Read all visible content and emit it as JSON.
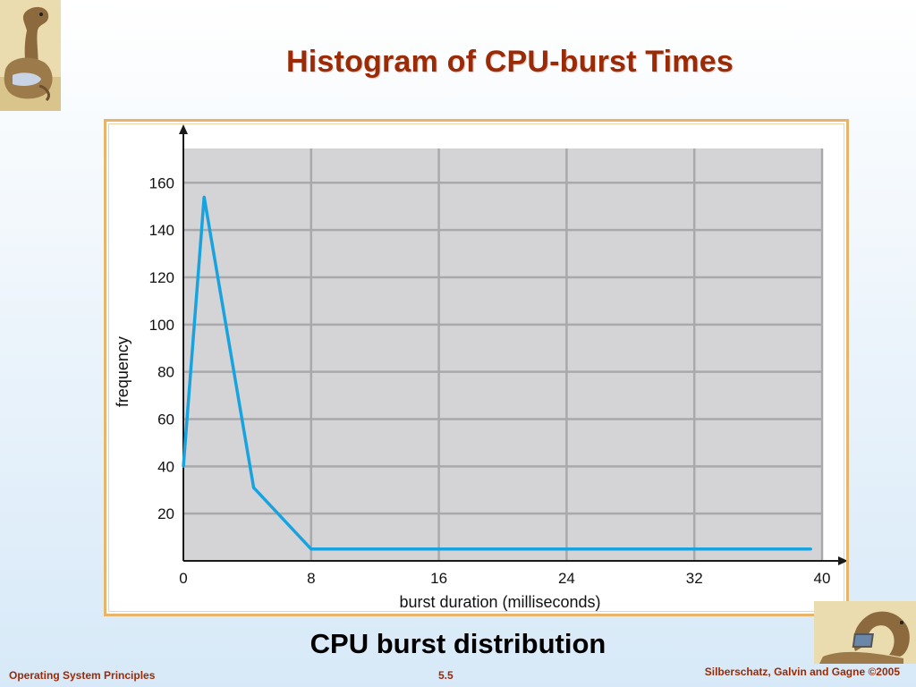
{
  "slide": {
    "title": "Histogram of CPU-burst Times",
    "caption": "CPU burst distribution",
    "footer_left": "Operating System Principles",
    "footer_center": "5.5",
    "footer_right": "Silberschatz, Galvin and Gagne ©2005"
  },
  "colors": {
    "title": "#9b2a06",
    "line": "#19a3de",
    "plot_bg": "#d4d4d6",
    "grid": "#a9a9ac",
    "frame": "#e8b46a"
  },
  "icons": [
    "dinosaur-logo-icon",
    "dinosaur-laptop-logo-icon"
  ],
  "chart_data": {
    "type": "line",
    "title": "",
    "xlabel": "burst duration (milliseconds)",
    "ylabel": "frequency",
    "xlim": [
      0,
      40
    ],
    "ylim": [
      0,
      160
    ],
    "x_ticks": [
      0,
      8,
      16,
      24,
      32,
      40
    ],
    "y_ticks": [
      20,
      40,
      60,
      80,
      100,
      120,
      140,
      160
    ],
    "grid": true,
    "legend": "none",
    "series": [
      {
        "x": [
          0,
          1.3,
          4.4,
          8,
          39.3
        ],
        "y": [
          40,
          154,
          31,
          5,
          5
        ]
      }
    ]
  }
}
